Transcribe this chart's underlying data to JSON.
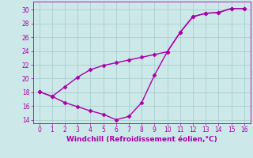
{
  "line1_x": [
    0,
    1,
    2,
    3,
    4,
    5,
    6,
    7,
    8,
    9,
    10,
    11,
    12,
    13,
    14,
    15,
    16
  ],
  "line1_y": [
    18.1,
    17.4,
    18.8,
    20.2,
    21.3,
    21.9,
    22.3,
    22.7,
    23.1,
    23.5,
    23.9,
    26.7,
    29.0,
    29.5,
    29.6,
    30.2,
    30.2
  ],
  "line2_x": [
    0,
    1,
    2,
    3,
    4,
    5,
    6,
    7,
    8,
    9,
    10,
    11,
    12,
    13,
    14,
    15,
    16
  ],
  "line2_y": [
    18.1,
    17.4,
    16.5,
    15.9,
    15.3,
    14.8,
    14.0,
    14.5,
    16.5,
    20.5,
    23.9,
    26.7,
    29.0,
    29.5,
    29.6,
    30.2,
    30.2
  ],
  "color": "#aa00aa",
  "marker": "D",
  "markersize": 2.5,
  "linewidth": 1.0,
  "xlabel": "Windchill (Refroidissement éolien,°C)",
  "xlim": [
    -0.5,
    16.5
  ],
  "ylim": [
    13.5,
    31.2
  ],
  "yticks": [
    14,
    16,
    18,
    20,
    22,
    24,
    26,
    28,
    30
  ],
  "xticks": [
    0,
    1,
    2,
    3,
    4,
    5,
    6,
    7,
    8,
    9,
    10,
    11,
    12,
    13,
    14,
    15,
    16
  ],
  "bg_color": "#cce8e8",
  "grid_color": "#aacece",
  "xlabel_color": "#aa00aa",
  "tick_color": "#aa00aa",
  "xlabel_fontsize": 6.5,
  "tick_fontsize": 5.5
}
